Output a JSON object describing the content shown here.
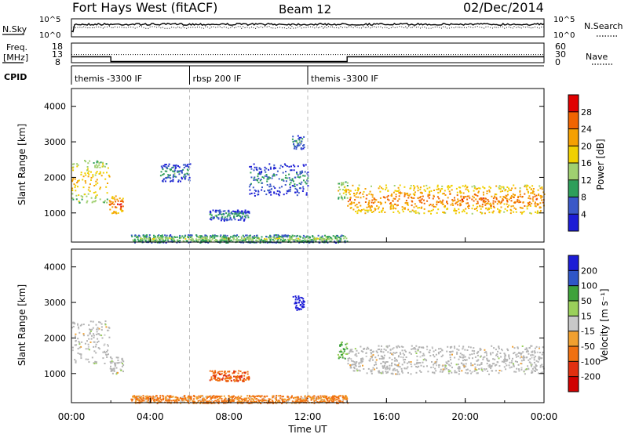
{
  "header": {
    "title": "Fort Hays West (fitACF)",
    "beam": "Beam 12",
    "date": "02/Dec/2014"
  },
  "colors": {
    "power_scale": [
      "#1c1cd6",
      "#3a58c8",
      "#2e9e5a",
      "#a0d070",
      "#f0d000",
      "#f5a000",
      "#f06400",
      "#e00000"
    ],
    "velocity_scale": [
      "#1c1cd6",
      "#2f56c8",
      "#3ea23a",
      "#9ad05a",
      "#c8c8c8",
      "#f0a030",
      "#f07010",
      "#e03010",
      "#d00000"
    ],
    "ground_scatter": "#b4b4b4"
  },
  "chart_data": [
    {
      "type": "line",
      "panel": "noise",
      "left_label": "N.Sky",
      "right_label": "N.Search",
      "left_ticks": [
        "10^5",
        "10^0"
      ],
      "right_ticks": [
        "10^5",
        "10^0"
      ],
      "note": "noise sky (solid) and noise search (dotted), log scale",
      "x": [
        "00:00",
        "02:00",
        "04:00",
        "06:00",
        "08:00",
        "10:00",
        "12:00",
        "14:00",
        "16:00",
        "18:00",
        "20:00",
        "22:00",
        "24:00"
      ]
    },
    {
      "type": "line",
      "panel": "frequency",
      "left_label": "Freq.",
      "left_unit": "[MHz]",
      "right_label": "Nave",
      "left_ticks": [
        "18",
        "13",
        "8"
      ],
      "right_ticks": [
        "60",
        "30",
        "0"
      ],
      "series": [
        {
          "name": "Freq.",
          "x": [
            0,
            2,
            2,
            14,
            14,
            24
          ],
          "values": [
            11,
            11,
            8.6,
            8.6,
            11,
            11
          ]
        },
        {
          "name": "Nave",
          "x": [
            0,
            24
          ],
          "values": [
            25,
            25
          ]
        }
      ]
    },
    {
      "type": "table",
      "panel": "cpid",
      "label": "CPID",
      "segments": [
        {
          "label": "themis -3300 IF",
          "start": 0,
          "end": 6
        },
        {
          "label": "rbsp 200 IF",
          "start": 6,
          "end": 12
        },
        {
          "label": "themis -3300 IF",
          "start": 12,
          "end": 24
        }
      ]
    },
    {
      "type": "heatmap",
      "panel": "power",
      "ylabel": "Slant Range [km]",
      "yticks": [
        1000,
        2000,
        3000,
        4000
      ],
      "ylim": [
        180,
        4500
      ],
      "xlim": [
        0,
        24
      ],
      "colorbar_label": "Power [dB]",
      "colorbar_ticks": [
        4,
        8,
        12,
        16,
        20,
        24,
        28
      ],
      "clim": [
        0,
        30
      ],
      "echo_regions": [
        {
          "t0": 0.0,
          "t1": 1.9,
          "r0": 1300,
          "r1": 2500,
          "power": 16
        },
        {
          "t0": 1.9,
          "t1": 2.6,
          "r0": 1000,
          "r1": 1500,
          "power": 22
        },
        {
          "t0": 4.5,
          "t1": 6.0,
          "r0": 1900,
          "r1": 2400,
          "power": 6
        },
        {
          "t0": 7.0,
          "t1": 9.0,
          "r0": 800,
          "r1": 1100,
          "power": 6
        },
        {
          "t0": 9.0,
          "t1": 12.0,
          "r0": 1500,
          "r1": 2400,
          "power": 5
        },
        {
          "t0": 11.2,
          "t1": 11.8,
          "r0": 2800,
          "r1": 3200,
          "power": 6
        },
        {
          "t0": 13.5,
          "t1": 14.0,
          "r0": 1400,
          "r1": 1900,
          "power": 14
        },
        {
          "t0": 14.0,
          "t1": 24.0,
          "r0": 1000,
          "r1": 1800,
          "power": 20
        },
        {
          "t0": 3.0,
          "t1": 14.0,
          "r0": 180,
          "r1": 400,
          "power": 10
        }
      ]
    },
    {
      "type": "heatmap",
      "panel": "velocity",
      "ylabel": "Slant Range [km]",
      "yticks": [
        1000,
        2000,
        3000,
        4000
      ],
      "ylim": [
        180,
        4500
      ],
      "xlim": [
        0,
        24
      ],
      "xticks": [
        "00:00",
        "04:00",
        "08:00",
        "12:00",
        "16:00",
        "20:00",
        "00:00"
      ],
      "xlabel": "Time UT",
      "colorbar_label": "Velocity [m s⁻¹]",
      "colorbar_ticks": [
        200,
        100,
        50,
        15,
        -15,
        -50,
        -100,
        -200
      ],
      "clim": [
        -250,
        250
      ],
      "echo_regions": [
        {
          "t0": 0.0,
          "t1": 1.9,
          "r0": 1300,
          "r1": 2500,
          "velocity": 0
        },
        {
          "t0": 1.9,
          "t1": 2.6,
          "r0": 1000,
          "r1": 1500,
          "velocity": 0
        },
        {
          "t0": 7.0,
          "t1": 9.0,
          "r0": 800,
          "r1": 1100,
          "velocity": -60
        },
        {
          "t0": 11.2,
          "t1": 11.8,
          "r0": 2800,
          "r1": 3200,
          "velocity": 180
        },
        {
          "t0": 13.5,
          "t1": 14.0,
          "r0": 1400,
          "r1": 1900,
          "velocity": 40
        },
        {
          "t0": 14.0,
          "t1": 24.0,
          "r0": 1000,
          "r1": 1800,
          "velocity": 0
        },
        {
          "t0": 3.0,
          "t1": 14.0,
          "r0": 180,
          "r1": 400,
          "velocity": -40
        }
      ]
    }
  ]
}
